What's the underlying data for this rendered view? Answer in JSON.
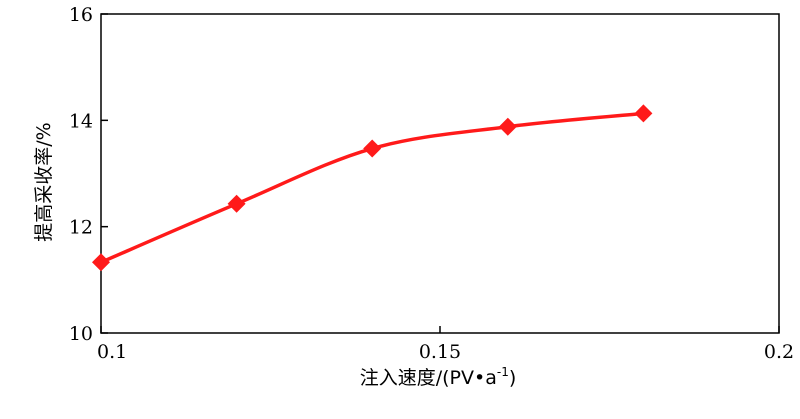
{
  "chart_data": {
    "type": "line",
    "title": "",
    "xlabel": "注入速度/(PV•a",
    "xlabel_sup": "-1",
    "xlabel_close": ")",
    "ylabel": "提高采收率/%",
    "xlim": [
      0.1,
      0.2
    ],
    "ylim": [
      10,
      16
    ],
    "x_ticks": [
      0.1,
      0.15,
      0.2
    ],
    "x_tick_labels": [
      "0.1",
      "0.15",
      "0.2"
    ],
    "y_ticks": [
      10,
      12,
      14,
      16
    ],
    "y_tick_labels": [
      "10",
      "12",
      "14",
      "16"
    ],
    "grid": false,
    "series": [
      {
        "x": [
          0.1,
          0.12,
          0.14,
          0.16,
          0.18
        ],
        "y": [
          11.33,
          12.43,
          13.47,
          13.88,
          14.13
        ],
        "color": "#ff1a1a",
        "marker": "diamond"
      }
    ]
  }
}
